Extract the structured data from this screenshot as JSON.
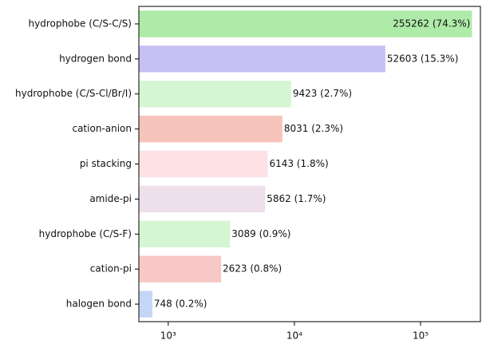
{
  "chart_data": {
    "type": "barh",
    "categories": [
      "hydrophobe (C/S-C/S)",
      "hydrogen bond",
      "hydrophobe (C/S-Cl/Br/I)",
      "cation-anion",
      "pi stacking",
      "amide-pi",
      "hydrophobe (C/S-F)",
      "cation-pi",
      "halogen bond"
    ],
    "values": [
      255262,
      52603,
      9423,
      8031,
      6143,
      5862,
      3089,
      2623,
      748
    ],
    "value_labels": [
      "255262 (74.3%)",
      "52603 (15.3%)",
      "9423 (2.7%)",
      "8031 (2.3%)",
      "6143 (1.8%)",
      "5862 (1.7%)",
      "3089 (0.9%)",
      "2623 (0.8%)",
      "748 (0.2%)"
    ],
    "colors": [
      "#aeeaa8",
      "#c7c0f5",
      "#d4f6d2",
      "#f7c4bc",
      "#fde1e4",
      "#ede0ea",
      "#d4f6d2",
      "#f7c8c6",
      "#c4d6f5"
    ],
    "xscale": "log",
    "xlim": [
      585,
      298000
    ],
    "xticks": [
      {
        "value": 1000,
        "label": "10³"
      },
      {
        "value": 10000,
        "label": "10⁴"
      },
      {
        "value": 100000,
        "label": "10⁵"
      }
    ]
  }
}
